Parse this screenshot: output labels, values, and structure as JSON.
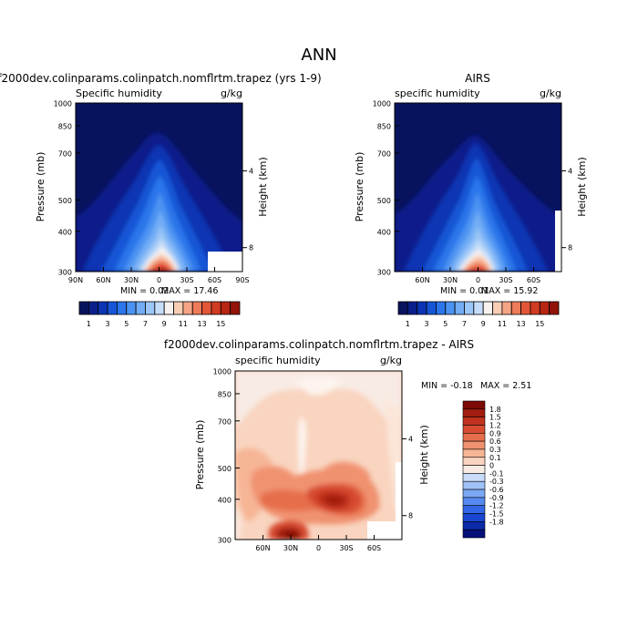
{
  "page_title": "ANN",
  "colors": {
    "cold": [
      "#08135e",
      "#0a1f8a",
      "#0d34b4",
      "#1656d6",
      "#2b76ea",
      "#4b93f2",
      "#72adf5",
      "#9bc6f7",
      "#c5ddf9",
      "#f7f1ef",
      "#f7cdb4",
      "#f5a585",
      "#ee7b5a",
      "#e35637",
      "#d03b22",
      "#b72513",
      "#931309"
    ],
    "diverging": [
      "#06107a",
      "#0b2aa8",
      "#1946d0",
      "#3366e6",
      "#5589ef",
      "#7aa8f4",
      "#a1c2f7",
      "#c9dcf9",
      "#f8ebe4",
      "#f9d4bf",
      "#f6b595",
      "#f09270",
      "#e66e4c",
      "#d74c31",
      "#c1321f",
      "#a31c10",
      "#7d0a05"
    ]
  },
  "chart_data": [
    {
      "type": "heatmap",
      "title": "f2000dev.colinparams.colinpatch.nomflrtm.trapez (yrs 1-9)",
      "left_label": "Specific humidity",
      "units": "g/kg",
      "ylabel": "Pressure (mb)",
      "y2label": "Height (km)",
      "xlim": [
        "90N",
        "90S"
      ],
      "ylim": [
        1000,
        300
      ],
      "y_ticks": [
        "300",
        "400",
        "500",
        "700",
        "850",
        "1000"
      ],
      "y2_ticks": [
        "8",
        "4"
      ],
      "x_ticks": [
        "90N",
        "60N",
        "30N",
        "0",
        "30S",
        "60S",
        "90S"
      ],
      "min_text": "MIN =   0.02",
      "max_text": "MAX =   17.46",
      "peak_lat": 0,
      "peak_value": 17.46
    },
    {
      "type": "heatmap",
      "title": "AIRS",
      "left_label": "specific humidity",
      "units": "g/kg",
      "ylabel": "Pressure (mb)",
      "y2label": "Height (km)",
      "ylim": [
        1000,
        300
      ],
      "y_ticks": [
        "300",
        "400",
        "500",
        "700",
        "850",
        "1000"
      ],
      "y2_ticks": [
        "8",
        "4"
      ],
      "x_ticks": [
        "60N",
        "30N",
        "0",
        "30S",
        "60S"
      ],
      "min_text": "MIN =   0.01",
      "max_text": "MAX =   15.92",
      "peak_lat": 5,
      "peak_value": 15.92
    },
    {
      "type": "heatmap",
      "title": "f2000dev.colinparams.colinpatch.nomflrtm.trapez - AIRS",
      "left_label": "specific humidity",
      "units": "g/kg",
      "ylabel": "Pressure (mb)",
      "y2label": "Height (km)",
      "ylim": [
        1000,
        300
      ],
      "y_ticks": [
        "300",
        "400",
        "500",
        "700",
        "850",
        "1000"
      ],
      "y2_ticks": [
        "8",
        "4"
      ],
      "x_ticks": [
        "60N",
        "30N",
        "0",
        "30S",
        "60S"
      ],
      "min_text": "MIN =   -0.18",
      "max_text": "MAX =    2.51"
    }
  ],
  "colorbar_top": {
    "labels": [
      "1",
      "3",
      "5",
      "7",
      "9",
      "11",
      "13",
      "15"
    ]
  },
  "colorbar_diff": {
    "labels": [
      "1.8",
      "1.5",
      "1.2",
      "0.9",
      "0.6",
      "0.3",
      "0.1",
      "0",
      "-0.1",
      "-0.3",
      "-0.6",
      "-0.9",
      "-1.2",
      "-1.5",
      "-1.8"
    ]
  }
}
